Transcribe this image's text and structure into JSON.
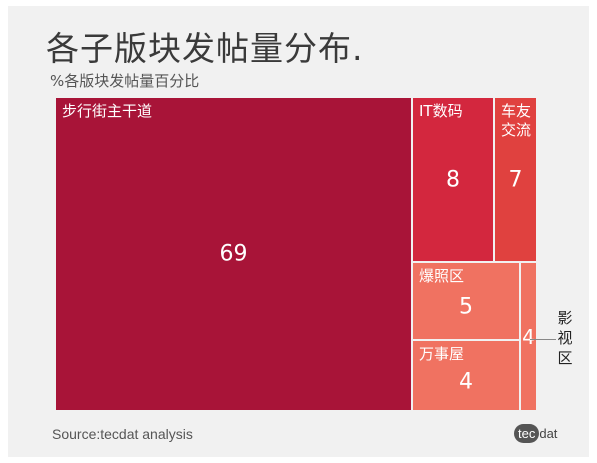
{
  "chart_data": {
    "type": "treemap",
    "title": "各子版块发帖量分布.",
    "subtitle": "%各版块发帖量百分比",
    "source": "Source:tecdat analysis",
    "unit": "%",
    "tiles": [
      {
        "label": "步行街主干道",
        "value": 69,
        "color": "#a81438"
      },
      {
        "label": "IT数码",
        "value": 8,
        "color": "#d3273e"
      },
      {
        "label": "车友交流",
        "value": 7,
        "color": "#e0413f"
      },
      {
        "label": "爆照区",
        "value": 5,
        "color": "#f07261"
      },
      {
        "label": "万事屋",
        "value": 4,
        "color": "#f07261"
      },
      {
        "label": "影视区",
        "value": 4,
        "color": "#f07261"
      }
    ]
  },
  "logo": {
    "part1": "tec",
    "part2": "dat"
  }
}
